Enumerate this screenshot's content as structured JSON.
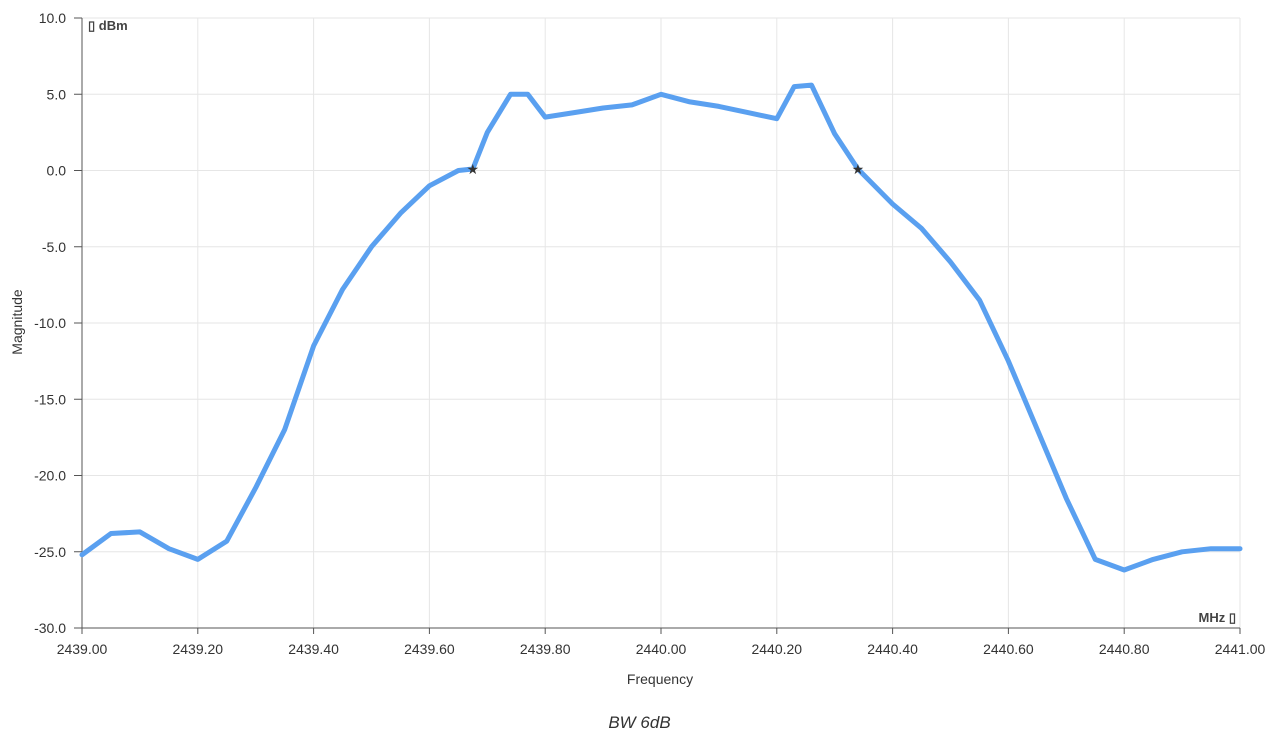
{
  "chart_data": {
    "type": "line",
    "title": "",
    "caption": "BW 6dB",
    "xlabel": "Frequency",
    "ylabel": "Magnitude",
    "x_unit": "MHz",
    "y_unit": "dBm",
    "xlim": [
      2439.0,
      2441.0
    ],
    "ylim": [
      -30.0,
      10.0
    ],
    "x_ticks": [
      "2439.00",
      "2439.20",
      "2439.40",
      "2439.60",
      "2439.80",
      "2440.00",
      "2440.20",
      "2440.40",
      "2440.60",
      "2440.80",
      "2441.00"
    ],
    "y_ticks": [
      "10.0",
      "5.0",
      "0.0",
      "-5.0",
      "-10.0",
      "-15.0",
      "-20.0",
      "-25.0",
      "-30.0"
    ],
    "grid": true,
    "colors": {
      "series": "#5aa0f0",
      "grid": "#e6e6e6",
      "marker": "#333333"
    },
    "series": [
      {
        "x": [
          2439.0,
          2439.05,
          2439.1,
          2439.15,
          2439.2,
          2439.25,
          2439.3,
          2439.35,
          2439.4,
          2439.45,
          2439.5,
          2439.55,
          2439.6,
          2439.65,
          2439.675,
          2439.7,
          2439.74,
          2439.77,
          2439.8,
          2439.85,
          2439.9,
          2439.95,
          2440.0,
          2440.05,
          2440.1,
          2440.15,
          2440.2,
          2440.23,
          2440.26,
          2440.3,
          2440.34,
          2440.4,
          2440.45,
          2440.5,
          2440.55,
          2440.6,
          2440.65,
          2440.7,
          2440.75,
          2440.8,
          2440.85,
          2440.9,
          2440.95,
          2441.0
        ],
        "y": [
          -25.2,
          -23.8,
          -23.7,
          -24.8,
          -25.5,
          -24.3,
          -20.8,
          -17.0,
          -11.5,
          -7.8,
          -5.0,
          -2.8,
          -1.0,
          0.0,
          0.1,
          2.5,
          5.0,
          5.0,
          3.5,
          3.8,
          4.1,
          4.3,
          5.0,
          4.5,
          4.2,
          3.8,
          3.4,
          5.5,
          5.6,
          2.4,
          0.1,
          -2.2,
          -3.8,
          -6.0,
          -8.5,
          -12.5,
          -17.0,
          -21.5,
          -25.5,
          -26.2,
          -25.5,
          -25.0,
          -24.8,
          -24.8
        ]
      }
    ],
    "markers": [
      {
        "x": 2439.675,
        "y": 0.1
      },
      {
        "x": 2440.34,
        "y": 0.1
      }
    ]
  }
}
